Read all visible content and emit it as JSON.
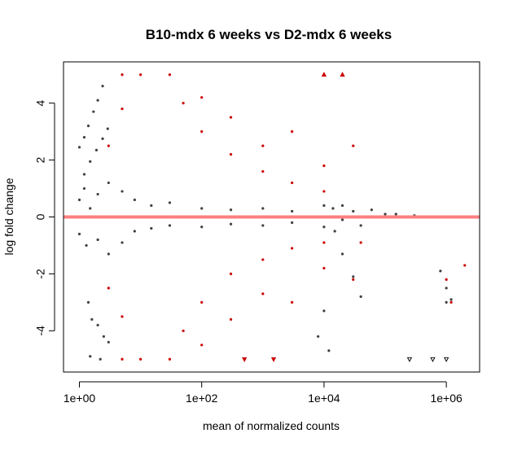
{
  "chart_data": {
    "type": "scatter",
    "title": "B10-mdx 6 weeks vs D2-mdx 6 weeks",
    "xlabel": "mean of normalized counts",
    "ylabel": "log fold change",
    "x_scale": "log10",
    "xlim": [
      0.55,
      3500000
    ],
    "ylim": [
      -5.45,
      5.45
    ],
    "x_ticks": [
      {
        "value": 1,
        "label": "1e+00"
      },
      {
        "value": 100,
        "label": "1e+02"
      },
      {
        "value": 10000,
        "label": "1e+04"
      },
      {
        "value": 1000000,
        "label": "1e+06"
      }
    ],
    "y_ticks": [
      {
        "value": -4,
        "label": "-4"
      },
      {
        "value": -2,
        "label": "-2"
      },
      {
        "value": 0,
        "label": "0"
      },
      {
        "value": 2,
        "label": "2"
      },
      {
        "value": 4,
        "label": "4"
      }
    ],
    "reference_line": {
      "y": 0,
      "color": "#ff7f7f"
    },
    "grid": false,
    "colors": {
      "not_significant": "#404040",
      "significant": "#cc0000",
      "outline": "#000000"
    },
    "series": [
      {
        "significant": false,
        "points": [
          [
            1.0,
            2.45
          ],
          [
            1.2,
            2.8
          ],
          [
            1.4,
            3.2
          ],
          [
            1.7,
            3.7
          ],
          [
            2.0,
            4.1
          ],
          [
            2.4,
            4.6
          ],
          [
            1.2,
            1.5
          ],
          [
            1.5,
            1.95
          ],
          [
            1.9,
            2.35
          ],
          [
            2.4,
            2.75
          ],
          [
            2.9,
            3.1
          ],
          [
            1.0,
            0.6
          ],
          [
            1.2,
            1.0
          ],
          [
            1.5,
            0.3
          ],
          [
            2.0,
            0.8
          ],
          [
            3.0,
            1.2
          ],
          [
            5.0,
            0.9
          ],
          [
            8.0,
            0.6
          ],
          [
            15,
            0.4
          ],
          [
            30,
            0.5
          ],
          [
            100,
            0.3
          ],
          [
            300,
            0.25
          ],
          [
            1000,
            0.3
          ],
          [
            3000,
            0.2
          ],
          [
            10000,
            0.4
          ],
          [
            1.0,
            -0.6
          ],
          [
            1.3,
            -1.0
          ],
          [
            2.0,
            -0.8
          ],
          [
            3.0,
            -1.3
          ],
          [
            5.0,
            -0.9
          ],
          [
            8.0,
            -0.5
          ],
          [
            15,
            -0.4
          ],
          [
            30,
            -0.3
          ],
          [
            100,
            -0.35
          ],
          [
            300,
            -0.25
          ],
          [
            1000,
            -0.3
          ],
          [
            3000,
            -0.2
          ],
          [
            10000,
            -0.35
          ],
          [
            1.4,
            -3.0
          ],
          [
            1.6,
            -3.6
          ],
          [
            2.0,
            -3.8
          ],
          [
            2.5,
            -4.2
          ],
          [
            3.0,
            -4.4
          ],
          [
            1.5,
            -4.9
          ],
          [
            2.2,
            -5.0
          ],
          [
            14000,
            0.3
          ],
          [
            20000,
            0.4
          ],
          [
            30000,
            0.2
          ],
          [
            60000,
            0.25
          ],
          [
            100000,
            0.1
          ],
          [
            20000,
            -0.1
          ],
          [
            40000,
            -0.3
          ],
          [
            15000,
            -0.5
          ],
          [
            20000,
            -1.3
          ],
          [
            30000,
            -2.1
          ],
          [
            40000,
            -2.8
          ],
          [
            10000,
            -3.3
          ],
          [
            12000,
            -4.7
          ],
          [
            8000,
            -4.2
          ],
          [
            150000,
            0.1
          ],
          [
            300000,
            0.05
          ],
          [
            800000,
            -1.9
          ],
          [
            1000000,
            -2.5
          ],
          [
            1000000,
            -3.0
          ],
          [
            1200000,
            -2.9
          ]
        ]
      },
      {
        "significant": true,
        "points": [
          [
            3.0,
            2.5
          ],
          [
            5.0,
            3.8
          ],
          [
            5.0,
            5.0
          ],
          [
            10,
            5.0
          ],
          [
            30,
            5.0
          ],
          [
            50,
            4.0
          ],
          [
            100,
            3.0
          ],
          [
            300,
            2.2
          ],
          [
            1000,
            1.6
          ],
          [
            3000,
            1.2
          ],
          [
            10000,
            0.9
          ],
          [
            100,
            4.2
          ],
          [
            300,
            3.5
          ],
          [
            1000,
            2.5
          ],
          [
            3000,
            3.0
          ],
          [
            10000,
            1.8
          ],
          [
            30000,
            2.5
          ],
          [
            3.0,
            -2.5
          ],
          [
            5.0,
            -3.5
          ],
          [
            5.0,
            -5.0
          ],
          [
            10,
            -5.0
          ],
          [
            30,
            -5.0
          ],
          [
            50,
            -4.0
          ],
          [
            100,
            -3.0
          ],
          [
            300,
            -2.0
          ],
          [
            1000,
            -1.5
          ],
          [
            3000,
            -1.1
          ],
          [
            10000,
            -0.9
          ],
          [
            100,
            -4.5
          ],
          [
            300,
            -3.6
          ],
          [
            1000,
            -2.7
          ],
          [
            3000,
            -3.0
          ],
          [
            10000,
            -1.8
          ],
          [
            30000,
            -2.2
          ],
          [
            2000000,
            -1.7
          ],
          [
            1000000,
            -2.2
          ],
          [
            1200000,
            -3.0
          ],
          [
            40000,
            -0.9
          ]
        ]
      }
    ],
    "clipped_points": [
      {
        "x": 20000,
        "y": 5.0,
        "direction": "up",
        "significant": true
      },
      {
        "x": 10000,
        "y": 5.0,
        "direction": "up",
        "significant": true
      },
      {
        "x": 250000,
        "y": -5.0,
        "direction": "down",
        "significant": false
      },
      {
        "x": 600000,
        "y": -5.0,
        "direction": "down",
        "significant": false
      },
      {
        "x": 1000000,
        "y": -5.0,
        "direction": "down",
        "significant": false
      },
      {
        "x": 500,
        "y": -5.0,
        "direction": "down",
        "significant": true
      },
      {
        "x": 1500,
        "y": -5.0,
        "direction": "down",
        "significant": true
      }
    ]
  }
}
